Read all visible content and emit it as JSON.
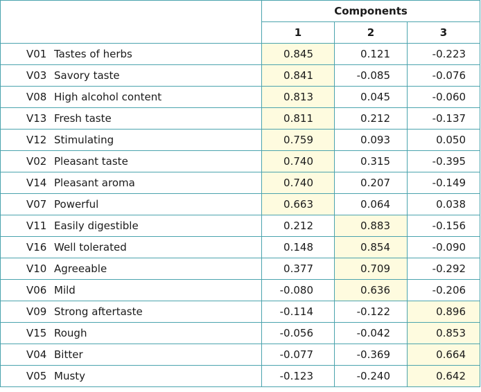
{
  "header": {
    "group_label": "Components",
    "columns": [
      "1",
      "2",
      "3"
    ]
  },
  "highlight_color": "#fefbdf",
  "border_color": "#4aa3ad",
  "rows": [
    {
      "code": "V01",
      "name": "Tastes of herbs",
      "values": [
        "0.845",
        "0.121",
        "-0.223"
      ],
      "highlight": 0
    },
    {
      "code": "V03",
      "name": "Savory taste",
      "values": [
        "0.841",
        "-0.085",
        "-0.076"
      ],
      "highlight": 0
    },
    {
      "code": "V08",
      "name": "High alcohol content",
      "values": [
        "0.813",
        "0.045",
        "-0.060"
      ],
      "highlight": 0
    },
    {
      "code": "V13",
      "name": "Fresh taste",
      "values": [
        "0.811",
        "0.212",
        "-0.137"
      ],
      "highlight": 0
    },
    {
      "code": "V12",
      "name": "Stimulating",
      "values": [
        "0.759",
        "0.093",
        "0.050"
      ],
      "highlight": 0
    },
    {
      "code": "V02",
      "name": "Pleasant taste",
      "values": [
        "0.740",
        "0.315",
        "-0.395"
      ],
      "highlight": 0
    },
    {
      "code": "V14",
      "name": "Pleasant aroma",
      "values": [
        "0.740",
        "0.207",
        "-0.149"
      ],
      "highlight": 0
    },
    {
      "code": "V07",
      "name": "Powerful",
      "values": [
        "0.663",
        "0.064",
        "0.038"
      ],
      "highlight": 0
    },
    {
      "code": "V11",
      "name": "Easily digestible",
      "values": [
        "0.212",
        "0.883",
        "-0.156"
      ],
      "highlight": 1
    },
    {
      "code": "V16",
      "name": "Well tolerated",
      "values": [
        "0.148",
        "0.854",
        "-0.090"
      ],
      "highlight": 1
    },
    {
      "code": "V10",
      "name": "Agreeable",
      "values": [
        "0.377",
        "0.709",
        "-0.292"
      ],
      "highlight": 1
    },
    {
      "code": "V06",
      "name": "Mild",
      "values": [
        "-0.080",
        "0.636",
        "-0.206"
      ],
      "highlight": 1
    },
    {
      "code": "V09",
      "name": "Strong aftertaste",
      "values": [
        "-0.114",
        "-0.122",
        "0.896"
      ],
      "highlight": 2
    },
    {
      "code": "V15",
      "name": "Rough",
      "values": [
        "-0.056",
        "-0.042",
        "0.853"
      ],
      "highlight": 2
    },
    {
      "code": "V04",
      "name": "Bitter",
      "values": [
        "-0.077",
        "-0.369",
        "0.664"
      ],
      "highlight": 2
    },
    {
      "code": "V05",
      "name": "Musty",
      "values": [
        "-0.123",
        "-0.240",
        "0.642"
      ],
      "highlight": 2
    }
  ]
}
